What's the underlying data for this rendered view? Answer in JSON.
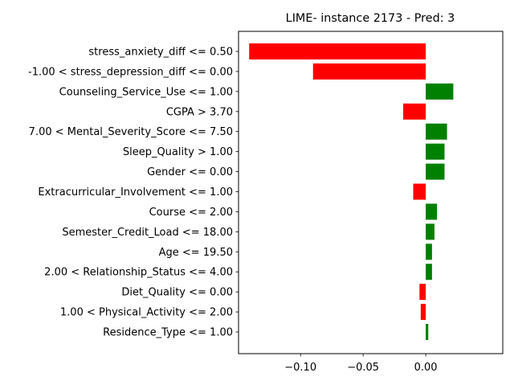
{
  "chart_data": {
    "type": "bar",
    "orientation": "horizontal",
    "title": "LIME- instance 2173 - Pred: 3",
    "xlabel": "",
    "ylabel": "",
    "xlim": [
      -0.1495,
      0.0615
    ],
    "xticks": [
      -0.1,
      -0.05,
      0.0
    ],
    "xtick_labels": [
      "−0.10",
      "−0.05",
      "0.00"
    ],
    "grid": false,
    "legend": "none",
    "colors": {
      "positive": "#008000",
      "negative": "#ff0000"
    },
    "categories": [
      "stress_anxiety_diff <= 0.50",
      "-1.00 < stress_depression_diff <= 0.00",
      "Counseling_Service_Use <= 1.00",
      "CGPA > 3.70",
      "7.00 < Mental_Severity_Score <= 7.50",
      "Sleep_Quality > 1.00",
      "Gender <= 0.00",
      "Extracurricular_Involvement <= 1.00",
      "Course <= 2.00",
      "Semester_Credit_Load <= 18.00",
      "Age <= 19.50",
      "2.00 < Relationship_Status <= 4.00",
      "Diet_Quality <= 0.00",
      "1.00 < Physical_Activity <= 2.00",
      "Residence_Type <= 1.00"
    ],
    "values": [
      -0.141,
      -0.09,
      0.022,
      -0.018,
      0.017,
      0.015,
      0.015,
      -0.01,
      0.009,
      0.007,
      0.005,
      0.005,
      -0.005,
      -0.004,
      0.002
    ]
  }
}
